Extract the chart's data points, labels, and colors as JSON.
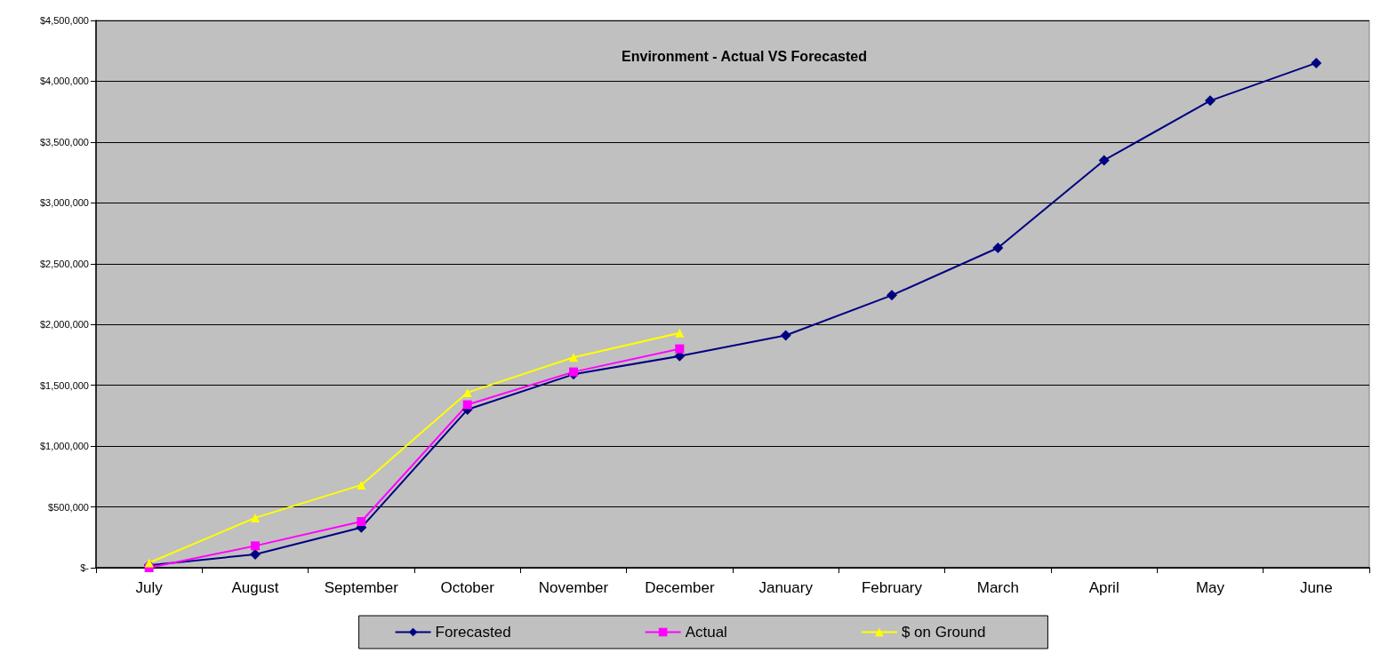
{
  "chart_data": {
    "type": "line",
    "title": "Environment - Actual VS Forecasted",
    "categories": [
      "July",
      "August",
      "September",
      "October",
      "November",
      "December",
      "January",
      "February",
      "March",
      "April",
      "May",
      "June"
    ],
    "series": [
      {
        "name": "Forecasted",
        "color": "#000080",
        "marker": "diamond",
        "values": [
          20000,
          110000,
          330000,
          1300000,
          1590000,
          1740000,
          1910000,
          2240000,
          2630000,
          3350000,
          3840000,
          4150000
        ]
      },
      {
        "name": "Actual",
        "color": "#ff00ff",
        "marker": "square",
        "values": [
          0,
          180000,
          380000,
          1340000,
          1610000,
          1800000,
          null,
          null,
          null,
          null,
          null,
          null
        ]
      },
      {
        "name": "$ on Ground",
        "color": "#ffff00",
        "marker": "triangle",
        "values": [
          40000,
          410000,
          680000,
          1440000,
          1730000,
          1930000,
          null,
          null,
          null,
          null,
          null,
          null
        ]
      }
    ],
    "ylim": [
      0,
      4500000
    ],
    "yticks": [
      {
        "value": 0,
        "label": "$-"
      },
      {
        "value": 500000,
        "label": "$500,000"
      },
      {
        "value": 1000000,
        "label": "$1,000,000"
      },
      {
        "value": 1500000,
        "label": "$1,500,000"
      },
      {
        "value": 2000000,
        "label": "$2,000,000"
      },
      {
        "value": 2500000,
        "label": "$2,500,000"
      },
      {
        "value": 3000000,
        "label": "$3,000,000"
      },
      {
        "value": 3500000,
        "label": "$3,500,000"
      },
      {
        "value": 4000000,
        "label": "$4,000,000"
      },
      {
        "value": 4500000,
        "label": "$4,500,000"
      }
    ],
    "grid": "y",
    "legend": "bottom"
  }
}
